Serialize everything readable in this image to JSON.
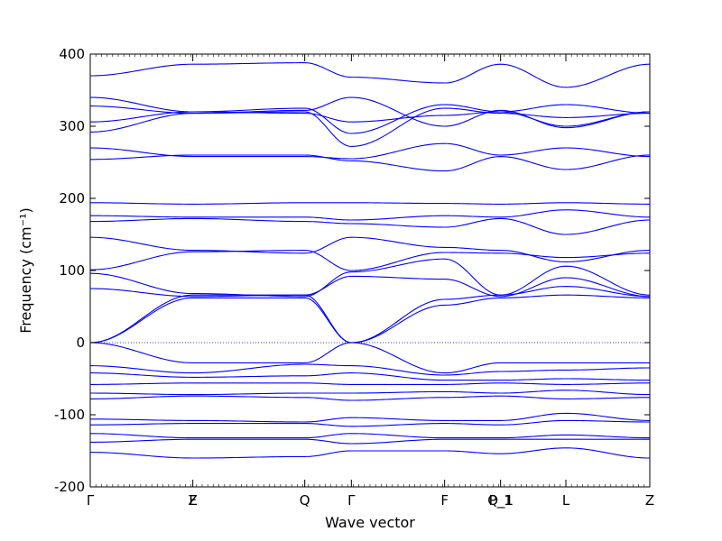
{
  "chart_data": {
    "type": "line",
    "title": "",
    "xlabel": "Wave vector",
    "ylabel": "Frequency (cm⁻¹)",
    "ylim": [
      -200,
      400
    ],
    "yticks": [
      -200,
      -100,
      0,
      100,
      200,
      300,
      400
    ],
    "xlim": [
      0,
      6.0
    ],
    "xticks": [
      {
        "x": 0.0,
        "label": "Γ"
      },
      {
        "x": 1.1,
        "label": "F"
      },
      {
        "x": 2.3,
        "label": "Q"
      },
      {
        "x": 2.8,
        "label": "Γ"
      },
      {
        "x": 3.8,
        "label": "F"
      },
      {
        "x": 4.4,
        "label": "P_1"
      },
      {
        "x": 5.1,
        "label": "L"
      },
      {
        "x": 6.0,
        "label": "Z"
      }
    ],
    "extra_xtick_labels": [
      {
        "x": 1.1,
        "label": "Z"
      },
      {
        "x": 4.4,
        "label": "Q_1"
      }
    ],
    "zero_line": true,
    "band_color": "#0000ff",
    "series": [
      {
        "x": [
          0,
          1.1,
          2.3,
          2.8,
          3.8,
          4.4,
          5.1,
          6.0
        ],
        "values": [
          370,
          386,
          388,
          368,
          360,
          386,
          354,
          386
        ]
      },
      {
        "x": [
          0,
          1.1,
          2.3,
          2.8,
          3.8,
          4.4,
          5.1,
          6.0
        ],
        "values": [
          340,
          320,
          325,
          290,
          330,
          320,
          300,
          320
        ]
      },
      {
        "x": [
          0,
          1.1,
          2.3,
          2.8,
          3.8,
          4.4,
          5.1,
          6.0
        ],
        "values": [
          328,
          318,
          320,
          272,
          325,
          318,
          312,
          318
        ]
      },
      {
        "x": [
          0,
          1.1,
          2.3,
          2.8,
          3.8,
          4.4,
          5.1,
          6.0
        ],
        "values": [
          306,
          320,
          318,
          306,
          315,
          320,
          330,
          318
        ]
      },
      {
        "x": [
          0,
          1.1,
          2.3,
          2.8,
          3.8,
          4.4,
          5.1,
          6.0
        ],
        "values": [
          292,
          318,
          322,
          340,
          300,
          322,
          298,
          320
        ]
      },
      {
        "x": [
          0,
          1.1,
          2.3,
          2.8,
          3.8,
          4.4,
          5.1,
          6.0
        ],
        "values": [
          270,
          258,
          258,
          255,
          276,
          260,
          270,
          258
        ]
      },
      {
        "x": [
          0,
          1.1,
          2.3,
          2.8,
          3.8,
          4.4,
          5.1,
          6.0
        ],
        "values": [
          254,
          260,
          260,
          252,
          238,
          258,
          240,
          260
        ]
      },
      {
        "x": [
          0,
          1.1,
          2.3,
          2.8,
          3.8,
          4.4,
          5.1,
          6.0
        ],
        "values": [
          194,
          192,
          194,
          194,
          193,
          192,
          194,
          192
        ]
      },
      {
        "x": [
          0,
          1.1,
          2.3,
          2.8,
          3.8,
          4.4,
          5.1,
          6.0
        ],
        "values": [
          176,
          174,
          174,
          170,
          176,
          174,
          184,
          174
        ]
      },
      {
        "x": [
          0,
          1.1,
          2.3,
          2.8,
          3.8,
          4.4,
          5.1,
          6.0
        ],
        "values": [
          168,
          172,
          168,
          165,
          160,
          172,
          150,
          170
        ]
      },
      {
        "x": [
          0,
          1.1,
          2.3,
          2.8,
          3.8,
          4.4,
          5.1,
          6.0
        ],
        "values": [
          146,
          128,
          124,
          146,
          132,
          128,
          112,
          128
        ]
      },
      {
        "x": [
          0,
          1.1,
          2.3,
          2.8,
          3.8,
          4.4,
          5.1,
          6.0
        ],
        "values": [
          101,
          126,
          128,
          100,
          125,
          124,
          118,
          124
        ]
      },
      {
        "x": [
          0,
          1.1,
          2.3,
          2.8,
          3.8,
          4.4,
          5.1,
          6.0
        ],
        "values": [
          96,
          68,
          64,
          98,
          116,
          66,
          106,
          66
        ]
      },
      {
        "x": [
          0,
          1.1,
          2.3,
          2.8,
          3.8,
          4.4,
          5.1,
          6.0
        ],
        "values": [
          75,
          64,
          66,
          92,
          88,
          64,
          90,
          64
        ]
      },
      {
        "x": [
          0,
          1.1,
          2.3,
          2.8,
          3.8,
          4.4,
          5.1,
          6.0
        ],
        "values": [
          0,
          66,
          66,
          0,
          60,
          66,
          78,
          64
        ]
      },
      {
        "x": [
          0,
          1.1,
          2.3,
          2.8,
          3.8,
          4.4,
          5.1,
          6.0
        ],
        "values": [
          0,
          62,
          62,
          0,
          52,
          62,
          66,
          62
        ]
      },
      {
        "x": [
          0,
          1.1,
          2.3,
          2.8,
          3.8,
          4.4,
          5.1,
          6.0
        ],
        "values": [
          0,
          -28,
          -28,
          0,
          -42,
          -28,
          -28,
          -28
        ]
      },
      {
        "x": [
          0,
          1.1,
          2.3,
          2.8,
          3.8,
          4.4,
          5.1,
          6.0
        ],
        "values": [
          -32,
          -42,
          -30,
          -32,
          -45,
          -40,
          -38,
          -35
        ]
      },
      {
        "x": [
          0,
          1.1,
          2.3,
          2.8,
          3.8,
          4.4,
          5.1,
          6.0
        ],
        "values": [
          -42,
          -48,
          -46,
          -42,
          -52,
          -52,
          -50,
          -52
        ]
      },
      {
        "x": [
          0,
          1.1,
          2.3,
          2.8,
          3.8,
          4.4,
          5.1,
          6.0
        ],
        "values": [
          -58,
          -56,
          -56,
          -58,
          -58,
          -56,
          -58,
          -56
        ]
      },
      {
        "x": [
          0,
          1.1,
          2.3,
          2.8,
          3.8,
          4.4,
          5.1,
          6.0
        ],
        "values": [
          -70,
          -72,
          -70,
          -70,
          -68,
          -70,
          -66,
          -72
        ]
      },
      {
        "x": [
          0,
          1.1,
          2.3,
          2.8,
          3.8,
          4.4,
          5.1,
          6.0
        ],
        "values": [
          -78,
          -74,
          -76,
          -80,
          -76,
          -74,
          -78,
          -76
        ]
      },
      {
        "x": [
          0,
          1.1,
          2.3,
          2.8,
          3.8,
          4.4,
          5.1,
          6.0
        ],
        "values": [
          -106,
          -108,
          -110,
          -104,
          -108,
          -108,
          -98,
          -108
        ]
      },
      {
        "x": [
          0,
          1.1,
          2.3,
          2.8,
          3.8,
          4.4,
          5.1,
          6.0
        ],
        "values": [
          -114,
          -112,
          -112,
          -116,
          -112,
          -114,
          -108,
          -110
        ]
      },
      {
        "x": [
          0,
          1.1,
          2.3,
          2.8,
          3.8,
          4.4,
          5.1,
          6.0
        ],
        "values": [
          -126,
          -132,
          -132,
          -126,
          -132,
          -132,
          -128,
          -132
        ]
      },
      {
        "x": [
          0,
          1.1,
          2.3,
          2.8,
          3.8,
          4.4,
          5.1,
          6.0
        ],
        "values": [
          -138,
          -134,
          -134,
          -140,
          -134,
          -134,
          -134,
          -134
        ]
      },
      {
        "x": [
          0,
          1.1,
          2.3,
          2.8,
          3.8,
          4.4,
          5.1,
          6.0
        ],
        "values": [
          -152,
          -160,
          -158,
          -150,
          -150,
          -154,
          -146,
          -160
        ]
      }
    ]
  }
}
